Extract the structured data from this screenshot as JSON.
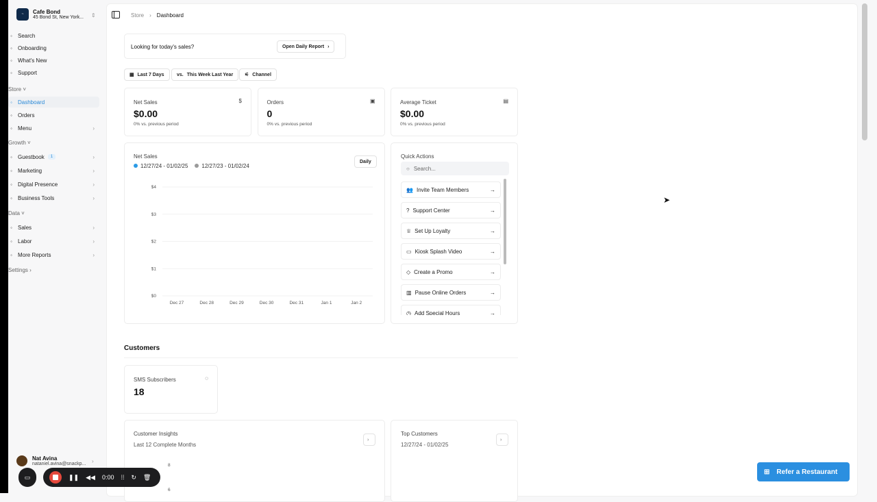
{
  "brand": {
    "name": "Cafe Bond",
    "address": "45 Bond St, New York..."
  },
  "sidebar": {
    "top": [
      {
        "icon": "search-icon",
        "label": "Search"
      },
      {
        "icon": "onboarding-icon",
        "label": "Onboarding"
      },
      {
        "icon": "news-icon",
        "label": "What's New"
      },
      {
        "icon": "support-icon",
        "label": "Support"
      }
    ],
    "store_label": "Store",
    "store": [
      {
        "icon": "dashboard-icon",
        "label": "Dashboard"
      },
      {
        "icon": "cart-icon",
        "label": "Orders"
      },
      {
        "icon": "book-icon",
        "label": "Menu"
      }
    ],
    "growth_label": "Growth",
    "growth": [
      {
        "icon": "chat-icon",
        "label": "Guestbook",
        "badge": "1"
      },
      {
        "icon": "rocket-icon",
        "label": "Marketing"
      },
      {
        "icon": "globe-icon",
        "label": "Digital Presence"
      },
      {
        "icon": "briefcase-icon",
        "label": "Business Tools"
      }
    ],
    "data_label": "Data",
    "data": [
      {
        "icon": "sales-icon",
        "label": "Sales"
      },
      {
        "icon": "people-icon",
        "label": "Labor"
      },
      {
        "icon": "chart-icon",
        "label": "More Reports"
      }
    ],
    "settings_label": "Settings",
    "user": {
      "name": "Nat Avina",
      "email": "nataniel.avina@snackp..."
    }
  },
  "breadcrumb": {
    "store": "Store",
    "current": "Dashboard"
  },
  "banner": {
    "text": "Looking for today's sales?",
    "button": "Open Daily Report"
  },
  "filters": {
    "range": "Last 7 Days",
    "compare_prefix": "vs.",
    "compare": "This Week Last Year",
    "channel": "Channel"
  },
  "stats": [
    {
      "label": "Net Sales",
      "value": "$0.00",
      "delta": "0% vs. previous period",
      "icon": "$"
    },
    {
      "label": "Orders",
      "value": "0",
      "delta": "0% vs. previous period",
      "icon": "▣"
    },
    {
      "label": "Average Ticket",
      "value": "$0.00",
      "delta": "0% vs. previous period",
      "icon": "▤"
    }
  ],
  "net_sales_chart": {
    "title": "Net Sales",
    "interval": "Daily",
    "legend": [
      {
        "label": "12/27/24 - 01/02/25",
        "color": "#2b9be6"
      },
      {
        "label": "12/27/23 - 01/02/24",
        "color": "#9a9a9a"
      }
    ]
  },
  "chart_data": {
    "type": "line",
    "categories": [
      "Dec 27",
      "Dec 28",
      "Dec 29",
      "Dec 30",
      "Dec 31",
      "Jan 1",
      "Jan 2"
    ],
    "yticks": [
      "$0",
      "$1",
      "$2",
      "$3",
      "$4"
    ],
    "ylim": [
      0,
      4
    ],
    "grid": true
  },
  "quick_actions": {
    "title": "Quick Actions",
    "search_placeholder": "Search...",
    "items": [
      {
        "icon": "👥",
        "label": "Invite Team Members"
      },
      {
        "icon": "?",
        "label": "Support Center"
      },
      {
        "icon": "♕",
        "label": "Set Up Loyalty"
      },
      {
        "icon": "▭",
        "label": "Kiosk Splash Video"
      },
      {
        "icon": "◇",
        "label": "Create a Promo"
      },
      {
        "icon": "▥",
        "label": "Pause Online Orders"
      },
      {
        "icon": "◷",
        "label": "Add Special Hours"
      }
    ]
  },
  "customers": {
    "title": "Customers",
    "sms_label": "SMS Subscribers",
    "sms_value": "18",
    "insights_title": "Customer Insights",
    "insights_sub": "Last 12 Complete Months",
    "insights_ticks": [
      "8",
      "6"
    ],
    "top_title": "Top Customers",
    "top_sub": "12/27/24 - 01/02/25"
  },
  "refer": "Refer a Restaurant",
  "recorder": {
    "time": "0:00"
  }
}
